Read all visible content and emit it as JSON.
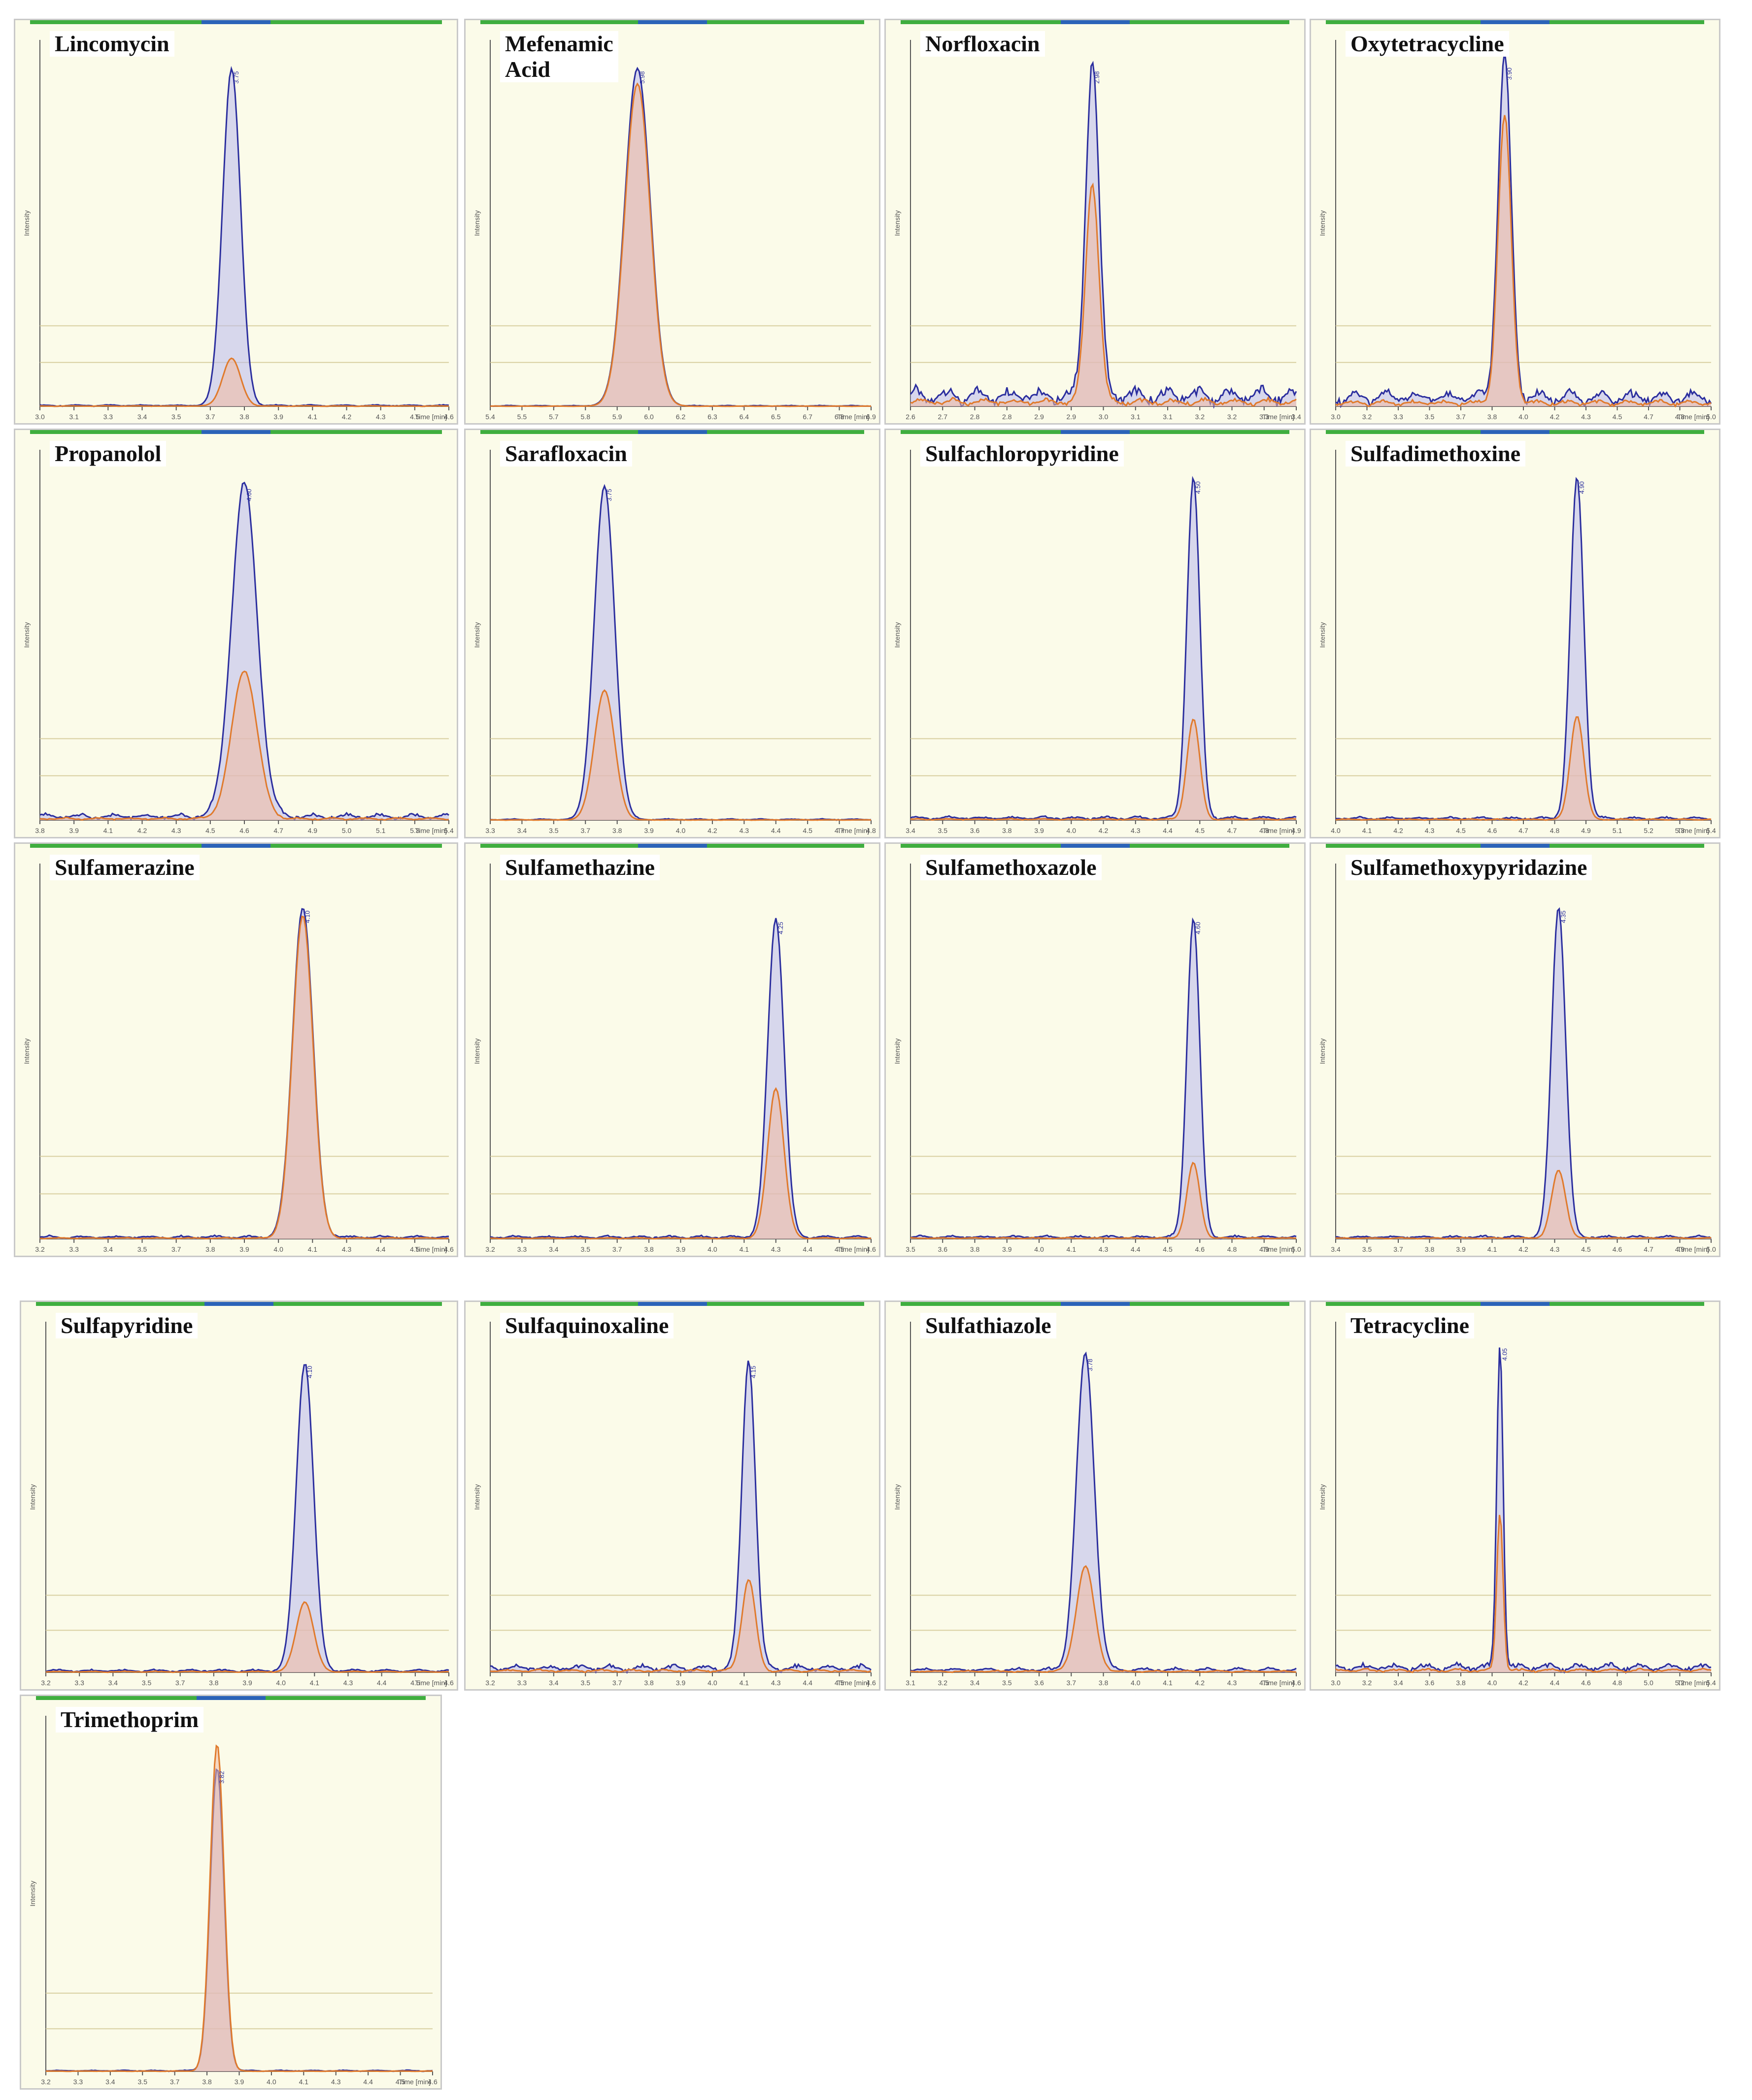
{
  "colors": {
    "panel_bg": "#fbfbe9",
    "quantifier_line": "#2b2e9e",
    "quantifier_fill": "#b9b9ee",
    "qualifier_line": "#e07a2c",
    "qualifier_fill": "#f2b9a0",
    "frame_bar": "#3fae3f",
    "frame_bar_mid": "#2b63b8"
  },
  "x_axis_unit": "Time [min]",
  "y_axis_label": "Intensity",
  "chart_data": [
    {
      "name": "Lincomycin",
      "type": "line",
      "xlim": [
        3.0,
        4.6
      ],
      "peak_rt": 3.75,
      "peak_width": 0.035,
      "ylim": [
        0,
        1
      ],
      "quantifier_height": 0.92,
      "qualifier_height": 0.13,
      "baseline_noise": 0.005
    },
    {
      "name": "Mefenamic Acid",
      "type": "line",
      "xlim": [
        5.4,
        6.9
      ],
      "peak_rt": 5.98,
      "peak_width": 0.05,
      "ylim": [
        0,
        1
      ],
      "quantifier_height": 0.92,
      "qualifier_height": 0.88,
      "baseline_noise": 0.003
    },
    {
      "name": "Norfloxacin",
      "type": "line",
      "xlim": [
        2.65,
        3.35
      ],
      "peak_rt": 2.98,
      "peak_width": 0.012,
      "ylim": [
        0,
        1
      ],
      "quantifier_height": 0.92,
      "qualifier_height": 0.6,
      "baseline_noise": 0.06
    },
    {
      "name": "Oxytetracycline",
      "type": "line",
      "xlim": [
        3.0,
        5.0
      ],
      "peak_rt": 3.9,
      "peak_width": 0.035,
      "ylim": [
        0,
        1
      ],
      "quantifier_height": 0.93,
      "qualifier_height": 0.78,
      "baseline_noise": 0.05
    },
    {
      "name": "Propanolol",
      "type": "line",
      "xlim": [
        3.8,
        5.4
      ],
      "peak_rt": 4.6,
      "peak_width": 0.05,
      "ylim": [
        0,
        1
      ],
      "quantifier_height": 0.9,
      "qualifier_height": 0.4,
      "baseline_noise": 0.02
    },
    {
      "name": "Sarafloxacin",
      "type": "line",
      "xlim": [
        3.3,
        4.8
      ],
      "peak_rt": 3.75,
      "peak_width": 0.04,
      "ylim": [
        0,
        1
      ],
      "quantifier_height": 0.9,
      "qualifier_height": 0.35,
      "baseline_noise": 0.004
    },
    {
      "name": "Sulfachloropyridine",
      "type": "line",
      "xlim": [
        3.4,
        4.9
      ],
      "peak_rt": 4.5,
      "peak_width": 0.025,
      "ylim": [
        0,
        1
      ],
      "quantifier_height": 0.92,
      "qualifier_height": 0.27,
      "baseline_noise": 0.012
    },
    {
      "name": "Sulfadimethoxine",
      "type": "line",
      "xlim": [
        4.0,
        5.4
      ],
      "peak_rt": 4.9,
      "peak_width": 0.025,
      "ylim": [
        0,
        1
      ],
      "quantifier_height": 0.92,
      "qualifier_height": 0.28,
      "baseline_noise": 0.01
    },
    {
      "name": "Sulfamerazine",
      "type": "line",
      "xlim": [
        3.2,
        4.6
      ],
      "peak_rt": 4.1,
      "peak_width": 0.035,
      "ylim": [
        0,
        1
      ],
      "quantifier_height": 0.88,
      "qualifier_height": 0.86,
      "baseline_noise": 0.01
    },
    {
      "name": "Sulfamethazine",
      "type": "line",
      "xlim": [
        3.2,
        4.6
      ],
      "peak_rt": 4.25,
      "peak_width": 0.03,
      "ylim": [
        0,
        1
      ],
      "quantifier_height": 0.85,
      "qualifier_height": 0.4,
      "baseline_noise": 0.01
    },
    {
      "name": "Sulfamethoxazole",
      "type": "line",
      "xlim": [
        3.5,
        5.0
      ],
      "peak_rt": 4.6,
      "peak_width": 0.025,
      "ylim": [
        0,
        1
      ],
      "quantifier_height": 0.85,
      "qualifier_height": 0.2,
      "baseline_noise": 0.01
    },
    {
      "name": "Sulfamethoxypyridazine",
      "type": "line",
      "xlim": [
        3.4,
        5.0
      ],
      "peak_rt": 4.35,
      "peak_width": 0.03,
      "ylim": [
        0,
        1
      ],
      "quantifier_height": 0.88,
      "qualifier_height": 0.18,
      "baseline_noise": 0.01
    },
    {
      "name": "Sulfapyridine",
      "type": "line",
      "xlim": [
        3.2,
        4.6
      ],
      "peak_rt": 4.1,
      "peak_width": 0.03,
      "ylim": [
        0,
        1
      ],
      "quantifier_height": 0.88,
      "qualifier_height": 0.2,
      "baseline_noise": 0.01
    },
    {
      "name": "Sulfaquinoxaline",
      "type": "line",
      "xlim": [
        3.2,
        4.6
      ],
      "peak_rt": 4.15,
      "peak_width": 0.025,
      "ylim": [
        0,
        1
      ],
      "quantifier_height": 0.88,
      "qualifier_height": 0.26,
      "baseline_noise": 0.025
    },
    {
      "name": "Sulfathiazole",
      "type": "line",
      "xlim": [
        3.1,
        4.6
      ],
      "peak_rt": 3.78,
      "peak_width": 0.035,
      "ylim": [
        0,
        1
      ],
      "quantifier_height": 0.9,
      "qualifier_height": 0.3,
      "baseline_noise": 0.015
    },
    {
      "name": "Tetracycline",
      "type": "line",
      "xlim": [
        3.0,
        5.4
      ],
      "peak_rt": 4.05,
      "peak_width": 0.02,
      "ylim": [
        0,
        1
      ],
      "quantifier_height": 0.93,
      "qualifier_height": 0.45,
      "baseline_noise": 0.03
    },
    {
      "name": "Trimethoprim",
      "type": "line",
      "xlim": [
        3.2,
        4.6
      ],
      "peak_rt": 3.82,
      "peak_width": 0.025,
      "ylim": [
        0,
        1
      ],
      "quantifier_height": 0.85,
      "qualifier_height": 0.92,
      "baseline_noise": 0.004
    }
  ],
  "titles": [
    "Lincomycin",
    "Mefenamic\nAcid",
    "Norfloxacin",
    "Oxytetracycline",
    "Propanolol",
    "Sarafloxacin",
    "Sulfachloropyridine",
    "Sulfadimethoxine",
    "Sulfamerazine",
    "Sulfamethazine",
    "Sulfamethoxazole",
    "Sulfamethoxypyridazine",
    "Sulfapyridine",
    "Sulfaquinoxaline",
    "Sulfathiazole",
    "Tetracycline",
    "Trimethoprim"
  ]
}
